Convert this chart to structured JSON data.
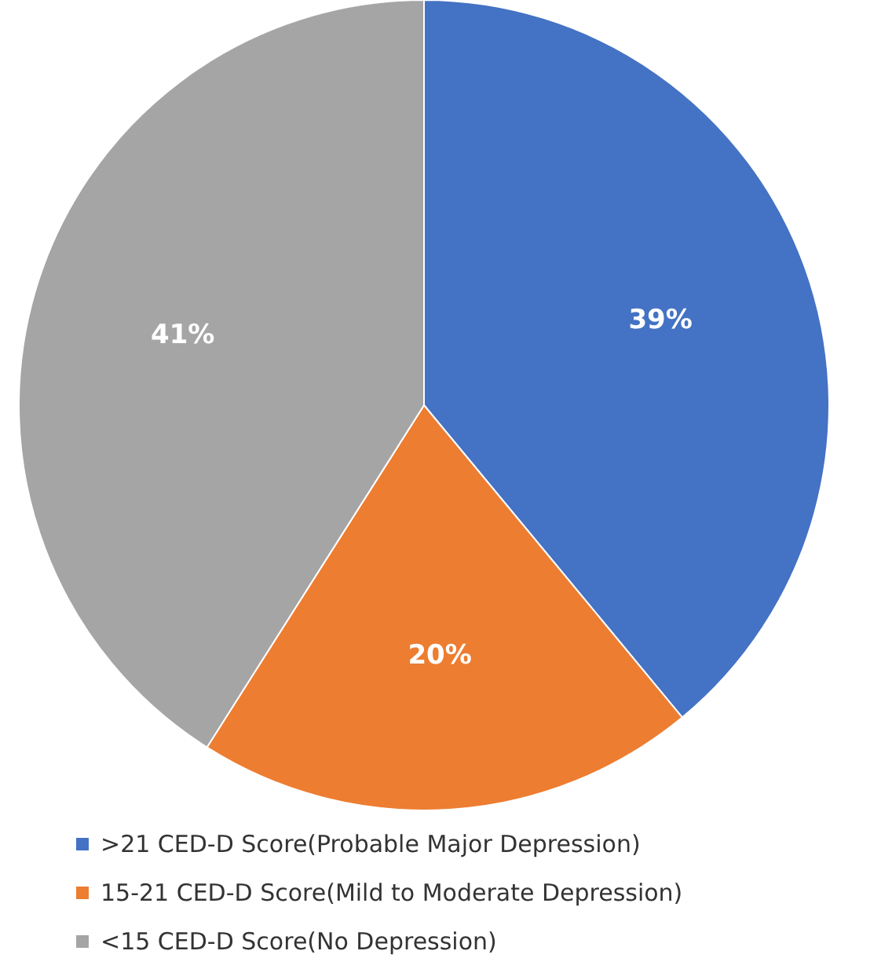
{
  "chart_data": {
    "type": "pie",
    "categories": [
      ">21 CED-D Score(Probable Major Depression)",
      "15-21 CED-D Score(Mild to Moderate Depression)",
      "<15 CED-D Score(No Depression)"
    ],
    "values": [
      39,
      20,
      41
    ],
    "colors": [
      "#4472c4",
      "#ed7d31",
      "#a5a5a5"
    ],
    "value_labels": [
      "39%",
      "20%",
      "41%"
    ],
    "legend": "bottom"
  }
}
